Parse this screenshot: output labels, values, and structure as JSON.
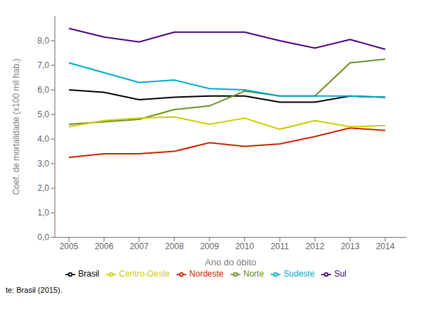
{
  "chart_data": {
    "type": "line",
    "x": [
      2005,
      2006,
      2007,
      2008,
      2009,
      2010,
      2011,
      2012,
      2013,
      2014
    ],
    "series": [
      {
        "name": "Brasil",
        "color": "#000000",
        "values": [
          6.0,
          5.9,
          5.6,
          5.7,
          5.75,
          5.75,
          5.5,
          5.5,
          5.75,
          5.7
        ]
      },
      {
        "name": "Norte",
        "color": "#6b8e23",
        "values": [
          4.6,
          4.7,
          4.8,
          5.2,
          5.35,
          5.95,
          5.75,
          5.75,
          7.1,
          7.25
        ]
      },
      {
        "name": "Nordeste",
        "color": "#cc2200",
        "values": [
          3.25,
          3.4,
          3.4,
          3.5,
          3.85,
          3.7,
          3.8,
          4.1,
          4.45,
          4.35
        ]
      },
      {
        "name": "Sudeste",
        "color": "#00aacc",
        "values": [
          7.1,
          6.7,
          6.3,
          6.4,
          6.05,
          6.0,
          5.75,
          5.75,
          5.75,
          5.7
        ]
      },
      {
        "name": "Sul",
        "color": "#4b0082",
        "values": [
          8.5,
          8.15,
          7.95,
          8.35,
          8.35,
          8.35,
          8.0,
          7.7,
          8.05,
          7.65
        ]
      },
      {
        "name": "Centro-Oeste",
        "color": "#cccc00",
        "values": [
          4.5,
          4.75,
          4.85,
          4.9,
          4.6,
          4.85,
          4.4,
          4.75,
          4.5,
          4.55
        ]
      }
    ],
    "xlabel": "Ano do óbito",
    "ylabel": "Coef. de mortalidade (x100 mil hab.)",
    "xlim": [
      2004.6,
      2014.6
    ],
    "xticks": [
      2005,
      2006,
      2007,
      2008,
      2009,
      2010,
      2011,
      2012,
      2013,
      2014
    ],
    "ylim": [
      0.0,
      9.0
    ],
    "yticks": [
      {
        "value": 0.0,
        "label": "0,0"
      },
      {
        "value": 1.0,
        "label": "1,0"
      },
      {
        "value": 2.0,
        "label": "2,0"
      },
      {
        "value": 3.0,
        "label": "3,0"
      },
      {
        "value": 4.0,
        "label": "4,0"
      },
      {
        "value": 5.0,
        "label": "5,0"
      },
      {
        "value": 6.0,
        "label": "6,0"
      },
      {
        "value": 7.0,
        "label": "7,0"
      },
      {
        "value": 8.0,
        "label": "8,0"
      }
    ],
    "grid": false,
    "legend": "bottom",
    "annotations": [
      "te: Brasil (2015)."
    ]
  }
}
